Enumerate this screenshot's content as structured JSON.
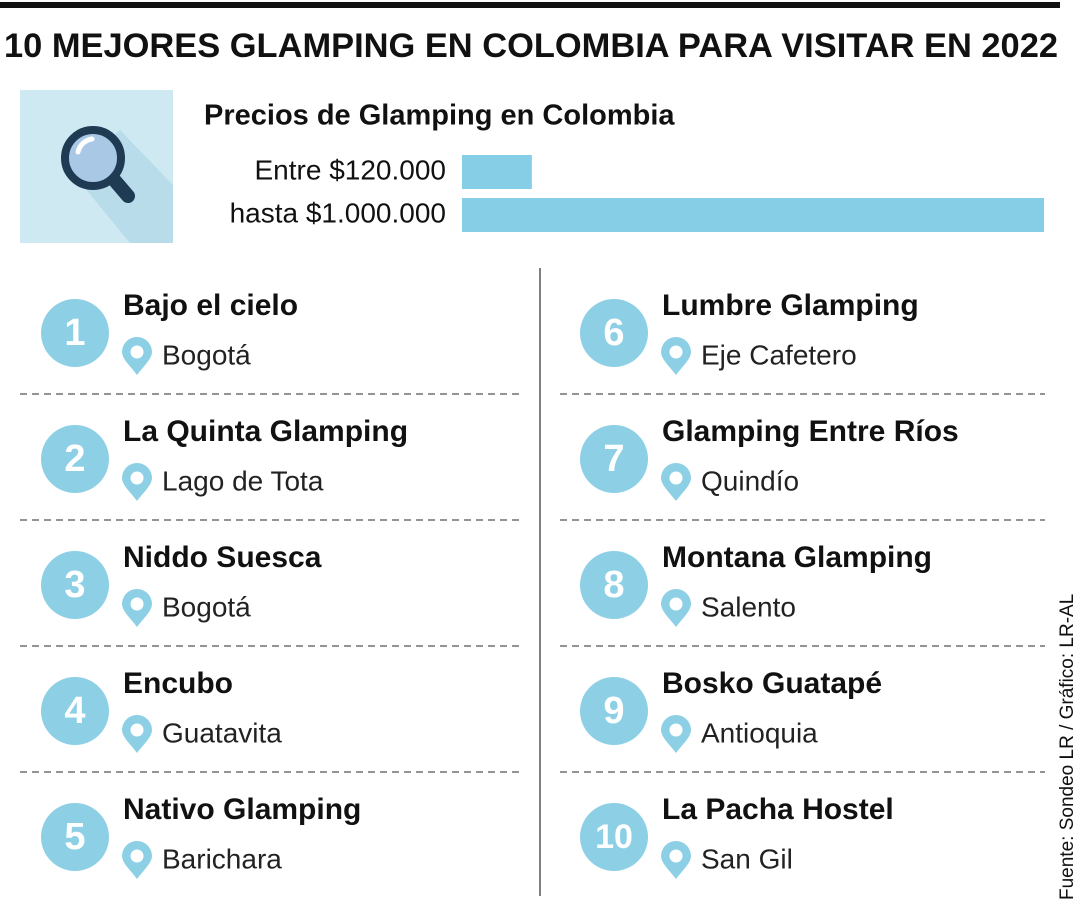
{
  "header": {
    "title": "10 MEJORES GLAMPING EN COLOMBIA PARA VISITAR EN 2022"
  },
  "prices": {
    "title": "Precios de Glamping en Colombia",
    "items": [
      {
        "label": "Entre $120.000",
        "value": 120000
      },
      {
        "label": "hasta $1.000.000",
        "value": 1000000
      }
    ]
  },
  "places": [
    {
      "rank": 1,
      "name": "Bajo el cielo",
      "location": "Bogotá"
    },
    {
      "rank": 2,
      "name": "La Quinta Glamping",
      "location": "Lago de Tota"
    },
    {
      "rank": 3,
      "name": "Niddo Suesca",
      "location": "Bogotá"
    },
    {
      "rank": 4,
      "name": "Encubo",
      "location": "Guatavita"
    },
    {
      "rank": 5,
      "name": "Nativo Glamping",
      "location": "Barichara"
    },
    {
      "rank": 6,
      "name": "Lumbre Glamping",
      "location": "Eje Cafetero"
    },
    {
      "rank": 7,
      "name": "Glamping Entre Ríos",
      "location": "Quindío"
    },
    {
      "rank": 8,
      "name": "Montana Glamping",
      "location": "Salento"
    },
    {
      "rank": 9,
      "name": "Bosko Guatapé",
      "location": "Antioquia"
    },
    {
      "rank": 10,
      "name": "La Pacha Hostel",
      "location": "San Gil"
    }
  ],
  "source": "Fuente: Sondeo LR / Gráfico: LR-AL"
}
